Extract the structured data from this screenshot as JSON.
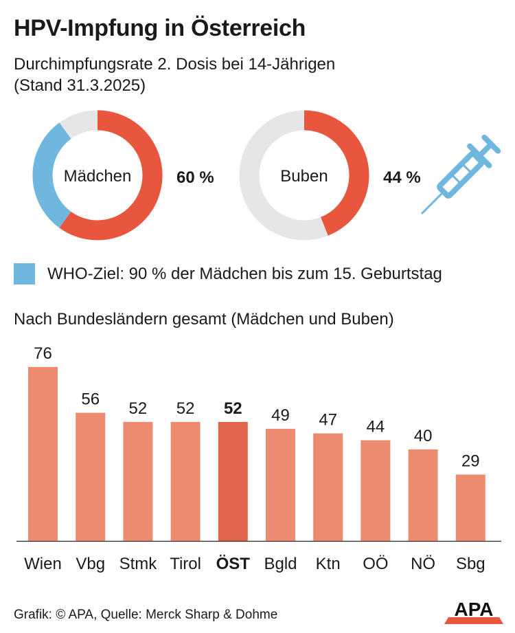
{
  "title": "HPV-Impfung in Österreich",
  "subtitle_line1": "Durchimpfungsrate 2. Dosis bei 14-Jährigen",
  "subtitle_line2": "(Stand 31.3.2025)",
  "colors": {
    "accent": "#e8573d",
    "who": "#6fb7df",
    "track": "#e6e6e8",
    "bar": "#ec8b70",
    "bar_highlight": "#e0654a"
  },
  "donuts": [
    {
      "label": "Mädchen",
      "value": 60,
      "value_label": "60 %",
      "target": 90
    },
    {
      "label": "Buben",
      "value": 44,
      "value_label": "44 %"
    }
  ],
  "icon": "syringe-icon",
  "legend_text": "WHO-Ziel: 90 % der Mädchen bis zum 15. Geburtstag",
  "section_title": "Nach Bundesländern gesamt (Mädchen und Buben)",
  "chart_data": [
    {
      "type": "pie",
      "title": "Durchimpfungsrate 2. Dosis bei 14-Jährigen (Stand 31.3.2025)",
      "categories": [
        "Mädchen",
        "Buben"
      ],
      "values": [
        60,
        44
      ],
      "unit": "%",
      "annotation": "WHO-Ziel: 90 % der Mädchen bis zum 15. Geburtstag"
    },
    {
      "type": "bar",
      "title": "Nach Bundesländern gesamt (Mädchen und Buben)",
      "categories": [
        "Wien",
        "Vbg",
        "Stmk",
        "Tirol",
        "ÖST",
        "Bgld",
        "Ktn",
        "OÖ",
        "NÖ",
        "Sbg"
      ],
      "values": [
        76,
        56,
        52,
        52,
        52,
        49,
        47,
        44,
        40,
        29
      ],
      "highlight": "ÖST",
      "xlabel": "",
      "ylabel": "",
      "ylim": [
        0,
        76
      ]
    }
  ],
  "footer": "Grafik: © APA, Quelle: Merck Sharp & Dohme",
  "logo_text": "APA"
}
